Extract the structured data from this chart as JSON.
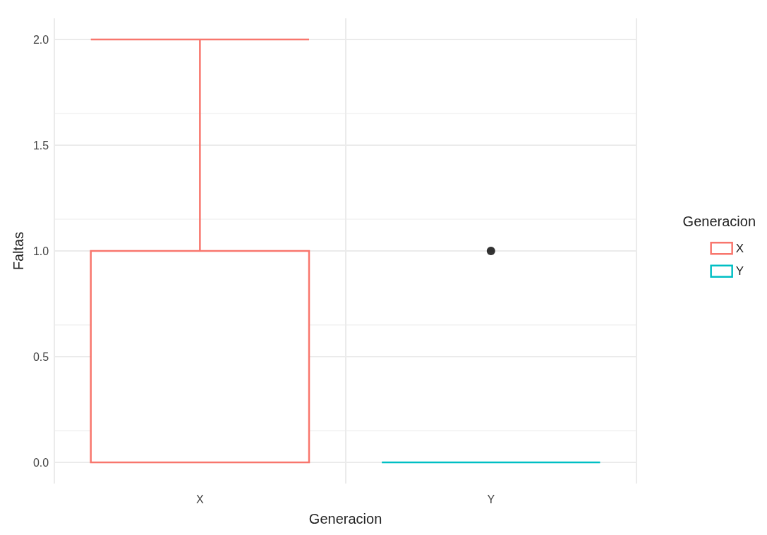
{
  "chart_data": {
    "type": "box",
    "xlabel": "Generacion",
    "ylabel": "Faltas",
    "legend_title": "Generacion",
    "categories": [
      "X",
      "Y"
    ],
    "series": [
      {
        "name": "X",
        "color": "#f8766d",
        "boxes": [
          {
            "low": 0,
            "q1": 0,
            "median": 0,
            "q3": 1,
            "high": 2
          },
          null
        ]
      },
      {
        "name": "Y",
        "color": "#00bfc4",
        "boxes": [
          null,
          {
            "low": 0,
            "q1": 0,
            "median": 0,
            "q3": 0,
            "high": 0,
            "outliers": [
              1
            ]
          }
        ]
      }
    ],
    "ylim": [
      -0.1,
      2.1
    ],
    "yticks": [
      {
        "value": 0,
        "label": "0.0"
      },
      {
        "value": 0.5,
        "label": "0.5"
      },
      {
        "value": 1,
        "label": "1.0"
      },
      {
        "value": 1.5,
        "label": "1.5"
      },
      {
        "value": 2,
        "label": "2.0"
      }
    ],
    "grid": true,
    "legend": "right"
  }
}
